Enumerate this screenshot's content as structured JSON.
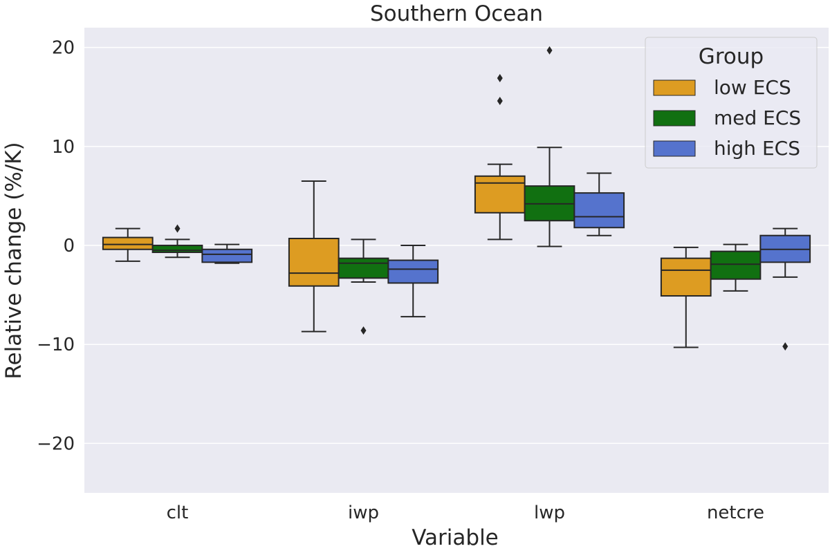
{
  "chart_data": {
    "type": "box",
    "title": "Southern Ocean",
    "xlabel": "Variable",
    "ylabel": "Relative change (%/K)",
    "categories": [
      "clt",
      "iwp",
      "lwp",
      "netcre"
    ],
    "ylim": [
      -25,
      22
    ],
    "yticks": [
      -20,
      -10,
      0,
      10,
      20
    ],
    "ytick_labels": [
      "−20",
      "−10",
      "0",
      "10",
      "20"
    ],
    "grid": true,
    "legend": {
      "title": "Group",
      "placement": "top-right"
    },
    "series": [
      {
        "name": "low ECS",
        "color": "#dd9c22",
        "boxes": [
          {
            "whislo": -1.6,
            "q1": -0.4,
            "med": 0.1,
            "q3": 0.8,
            "whishi": 1.7,
            "fliers": []
          },
          {
            "whislo": -8.7,
            "q1": -4.1,
            "med": -2.8,
            "q3": 0.7,
            "whishi": 6.5,
            "fliers": []
          },
          {
            "whislo": 0.6,
            "q1": 3.3,
            "med": 6.3,
            "q3": 7.0,
            "whishi": 8.2,
            "fliers": [
              14.6,
              16.9
            ]
          },
          {
            "whislo": -10.3,
            "q1": -5.1,
            "med": -2.5,
            "q3": -1.3,
            "whishi": -0.2,
            "fliers": []
          }
        ]
      },
      {
        "name": "med ECS",
        "color": "#117011",
        "boxes": [
          {
            "whislo": -1.2,
            "q1": -0.7,
            "med": -0.5,
            "q3": 0.0,
            "whishi": 0.6,
            "fliers": [
              1.7
            ]
          },
          {
            "whislo": -3.7,
            "q1": -3.3,
            "med": -1.8,
            "q3": -1.3,
            "whishi": 0.6,
            "fliers": [
              -8.6
            ]
          },
          {
            "whislo": -0.1,
            "q1": 2.5,
            "med": 4.2,
            "q3": 6.0,
            "whishi": 9.9,
            "fliers": [
              19.7
            ]
          },
          {
            "whislo": -4.6,
            "q1": -3.4,
            "med": -1.9,
            "q3": -0.6,
            "whishi": 0.1,
            "fliers": []
          }
        ]
      },
      {
        "name": "high ECS",
        "color": "#5573cd",
        "boxes": [
          {
            "whislo": -1.8,
            "q1": -1.7,
            "med": -0.9,
            "q3": -0.4,
            "whishi": 0.1,
            "fliers": []
          },
          {
            "whislo": -7.2,
            "q1": -3.8,
            "med": -2.4,
            "q3": -1.5,
            "whishi": 0.0,
            "fliers": []
          },
          {
            "whislo": 1.0,
            "q1": 1.8,
            "med": 2.9,
            "q3": 5.3,
            "whishi": 7.3,
            "fliers": []
          },
          {
            "whislo": -3.2,
            "q1": -1.7,
            "med": -0.4,
            "q3": 1.0,
            "whishi": 1.7,
            "fliers": [
              -10.2
            ]
          }
        ]
      }
    ]
  }
}
